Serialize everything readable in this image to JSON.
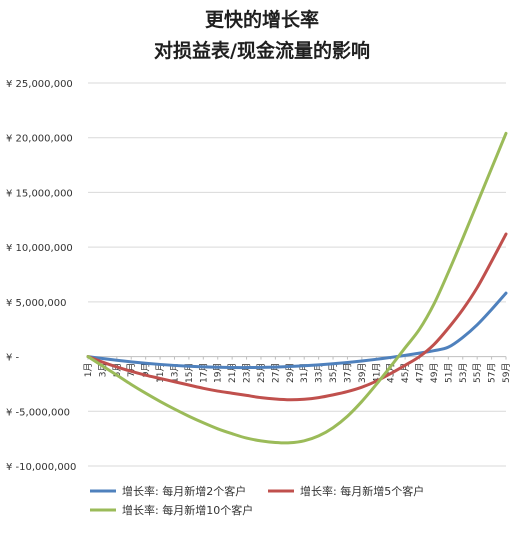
{
  "colors": {
    "series1": "#4f81bd",
    "series2": "#c0504d",
    "series3": "#9bbb59",
    "gridline": "#d9d9d9",
    "axis": "#bfbfbf"
  },
  "chart_data": {
    "type": "line",
    "title": [
      "更快的增长率",
      "对损益表/现金流量的影响"
    ],
    "xlabel": "",
    "ylabel": "",
    "x": [
      1,
      3,
      5,
      7,
      9,
      11,
      13,
      15,
      17,
      19,
      21,
      23,
      25,
      27,
      29,
      31,
      33,
      35,
      37,
      39,
      41,
      43,
      45,
      47,
      49,
      51,
      53,
      55,
      57,
      59
    ],
    "x_tick_labels": [
      "1月",
      "3月",
      "5月",
      "7月",
      "9月",
      "11月",
      "13月",
      "15月",
      "17月",
      "19月",
      "21月",
      "23月",
      "25月",
      "27月",
      "29月",
      "31月",
      "33月",
      "35月",
      "37月",
      "39月",
      "41月",
      "43月",
      "45月",
      "47月",
      "49月",
      "51月",
      "53月",
      "55月",
      "57月",
      "59月"
    ],
    "ylim": [
      -10000000,
      25000000
    ],
    "y_ticks": [
      25000000,
      20000000,
      15000000,
      10000000,
      5000000,
      0,
      -5000000,
      -10000000
    ],
    "y_tick_labels": [
      "¥ 25,000,000",
      "¥ 20,000,000",
      "¥ 15,000,000",
      "¥ 10,000,000",
      "¥ 5,000,000",
      "¥ -",
      "¥ -5,000,000",
      "¥ -10,000,000"
    ],
    "grid": true,
    "legend_position": "bottom",
    "series": [
      {
        "name": "增长率: 每月新增2个客户",
        "color": "#4f81bd",
        "values": [
          0,
          -179000,
          -340000,
          -484000,
          -610000,
          -719000,
          -810000,
          -884000,
          -940000,
          -979000,
          -1000000,
          -1004000,
          -990000,
          -959000,
          -910000,
          -844000,
          -760000,
          -659000,
          -540000,
          -404000,
          -250000,
          -79000,
          110000,
          316000,
          540000,
          860000,
          1750000,
          2900000,
          4300000,
          5800000
        ]
      },
      {
        "name": "增长率: 每月新增5个客户",
        "color": "#c0504d",
        "values": [
          0,
          -500000,
          -950000,
          -1350000,
          -1700000,
          -2000000,
          -2300000,
          -2600000,
          -2900000,
          -3150000,
          -3350000,
          -3550000,
          -3750000,
          -3880000,
          -3950000,
          -3900000,
          -3750000,
          -3500000,
          -3200000,
          -2800000,
          -2250000,
          -1550000,
          -800000,
          0,
          1100000,
          2600000,
          4300000,
          6300000,
          8700000,
          11200000
        ]
      },
      {
        "name": "增长率: 每月新增10个客户",
        "color": "#9bbb59",
        "values": [
          0,
          -850000,
          -1700000,
          -2550000,
          -3350000,
          -4100000,
          -4800000,
          -5450000,
          -6050000,
          -6600000,
          -7050000,
          -7450000,
          -7700000,
          -7850000,
          -7880000,
          -7700000,
          -7250000,
          -6500000,
          -5450000,
          -4100000,
          -2550000,
          -900000,
          800000,
          2500000,
          4800000,
          7700000,
          10800000,
          14000000,
          17200000,
          20400000
        ]
      }
    ]
  }
}
